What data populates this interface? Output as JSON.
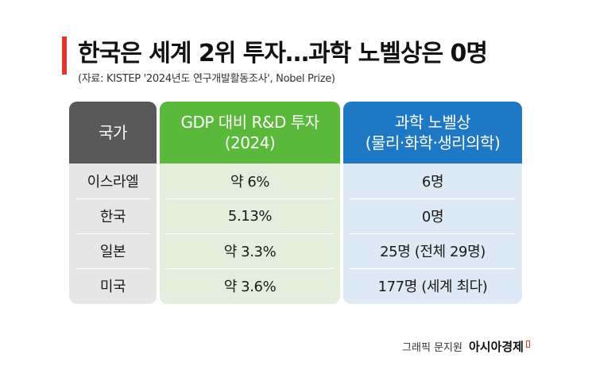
{
  "title": "한국은 세계 2위 투자…과학 노벨상은 0명",
  "source": "(자료: KISTEP '2024년도 연구개발활동조사', Nobel Prize)",
  "chart_data": {
    "type": "table",
    "columns": [
      {
        "header_lines": [
          "국가"
        ]
      },
      {
        "header_lines": [
          "GDP 대비 R&D 투자",
          "(2024)"
        ]
      },
      {
        "header_lines": [
          "과학 노벨상",
          "(물리·화학·생리의학)"
        ]
      }
    ],
    "rows": [
      {
        "country": "이스라엘",
        "rd_investment": "약 6%",
        "nobel": "6명"
      },
      {
        "country": "한국",
        "rd_investment": "5.13%",
        "nobel": "0명"
      },
      {
        "country": "일본",
        "rd_investment": "약 3.3%",
        "nobel": "25명 (전체 29명)"
      },
      {
        "country": "미국",
        "rd_investment": "약 3.6%",
        "nobel": "177명 (세계 최다)"
      }
    ]
  },
  "credit": {
    "text": "그래픽 문지원",
    "brand": "아시아경제"
  },
  "colors": {
    "accent_red": "#e0362c",
    "country_header": "#595959",
    "rd_header": "#5ab83b",
    "nobel_header": "#1e78c4",
    "country_body": "#e6e6e6",
    "rd_body": "#e3efdc",
    "nobel_body": "#dde9f5"
  }
}
